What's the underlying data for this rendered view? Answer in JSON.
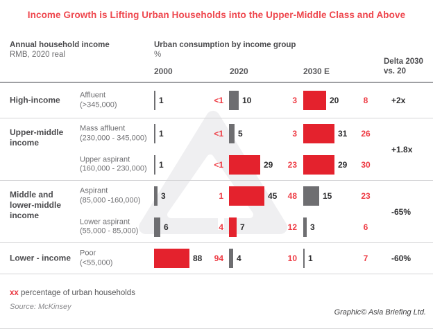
{
  "title": "Income Growth is Lifting Urban Households into the Upper-Middle Class and Above",
  "header": {
    "left_title": "Annual household income",
    "left_sub": "RMB, 2020 real",
    "mid_title": "Urban consumption by income group",
    "mid_sub": "%",
    "years": [
      "2000",
      "2020",
      "2030 E"
    ],
    "delta_line1": "Delta 2030",
    "delta_line2": "vs. 20"
  },
  "colors": {
    "bar_red": "#e4222d",
    "bar_gray": "#6e6e71",
    "red_text": "#ee3a43",
    "title_red": "#ee464d",
    "watermark": "#efeff1"
  },
  "chart_data": {
    "type": "bar",
    "title": "Urban consumption by income group",
    "unit": "%",
    "categories_note": "black numbers = consumption share %, red numbers = percentage of urban households",
    "years": [
      "2000",
      "2020",
      "2030 E"
    ],
    "groups": [
      {
        "label": "High-income",
        "delta": "+2x",
        "rows": [
          {
            "name": "Affluent",
            "range": "(>345,000)",
            "consumption": [
              {
                "label": "1",
                "value": 1,
                "color": "gray"
              },
              {
                "label": "10",
                "value": 10,
                "color": "gray"
              },
              {
                "label": "20",
                "value": 20,
                "color": "red"
              }
            ],
            "households": [
              "<1",
              "3",
              "8"
            ]
          }
        ]
      },
      {
        "label": "Upper-middle income",
        "delta": "+1.8x",
        "rows": [
          {
            "name": "Mass affluent",
            "range": "(230,000 - 345,000)",
            "consumption": [
              {
                "label": "1",
                "value": 1,
                "color": "gray"
              },
              {
                "label": "5",
                "value": 5,
                "color": "gray"
              },
              {
                "label": "31",
                "value": 31,
                "color": "red"
              }
            ],
            "households": [
              "<1",
              "3",
              "26"
            ]
          },
          {
            "name": "Upper aspirant",
            "range": "(160,000 - 230,000)",
            "consumption": [
              {
                "label": "1",
                "value": 1,
                "color": "gray"
              },
              {
                "label": "29",
                "value": 29,
                "color": "red"
              },
              {
                "label": "29",
                "value": 29,
                "color": "red"
              }
            ],
            "households": [
              "<1",
              "23",
              "30"
            ]
          }
        ]
      },
      {
        "label": "Middle and lower-middle income",
        "delta": "-65%",
        "rows": [
          {
            "name": "Aspirant",
            "range": "(85,000 -160,000)",
            "consumption": [
              {
                "label": "3",
                "value": 3,
                "color": "gray"
              },
              {
                "label": "45",
                "value": 45,
                "color": "red"
              },
              {
                "label": "15",
                "value": 15,
                "color": "gray"
              }
            ],
            "households": [
              "1",
              "48",
              "23"
            ]
          },
          {
            "name": "Lower aspirant",
            "range": "(55,000 - 85,000)",
            "consumption": [
              {
                "label": "6",
                "value": 6,
                "color": "gray"
              },
              {
                "label": "7",
                "value": 7,
                "color": "red"
              },
              {
                "label": "3",
                "value": 3,
                "color": "gray"
              }
            ],
            "households": [
              "4",
              "12",
              "6"
            ]
          }
        ]
      },
      {
        "label": "Lower - income",
        "delta": "-60%",
        "rows": [
          {
            "name": "Poor",
            "range": "(<55,000)",
            "consumption": [
              {
                "label": "88",
                "value": 88,
                "color": "red"
              },
              {
                "label": "4",
                "value": 4,
                "color": "gray"
              },
              {
                "label": "1",
                "value": 1,
                "color": "gray"
              }
            ],
            "households": [
              "94",
              "10",
              "7"
            ]
          }
        ]
      }
    ]
  },
  "footer": {
    "note_marker": "xx",
    "note_text": " percentage of urban households",
    "source": "Source: McKinsey",
    "credit": "Graphic© Asia Briefing Ltd."
  }
}
